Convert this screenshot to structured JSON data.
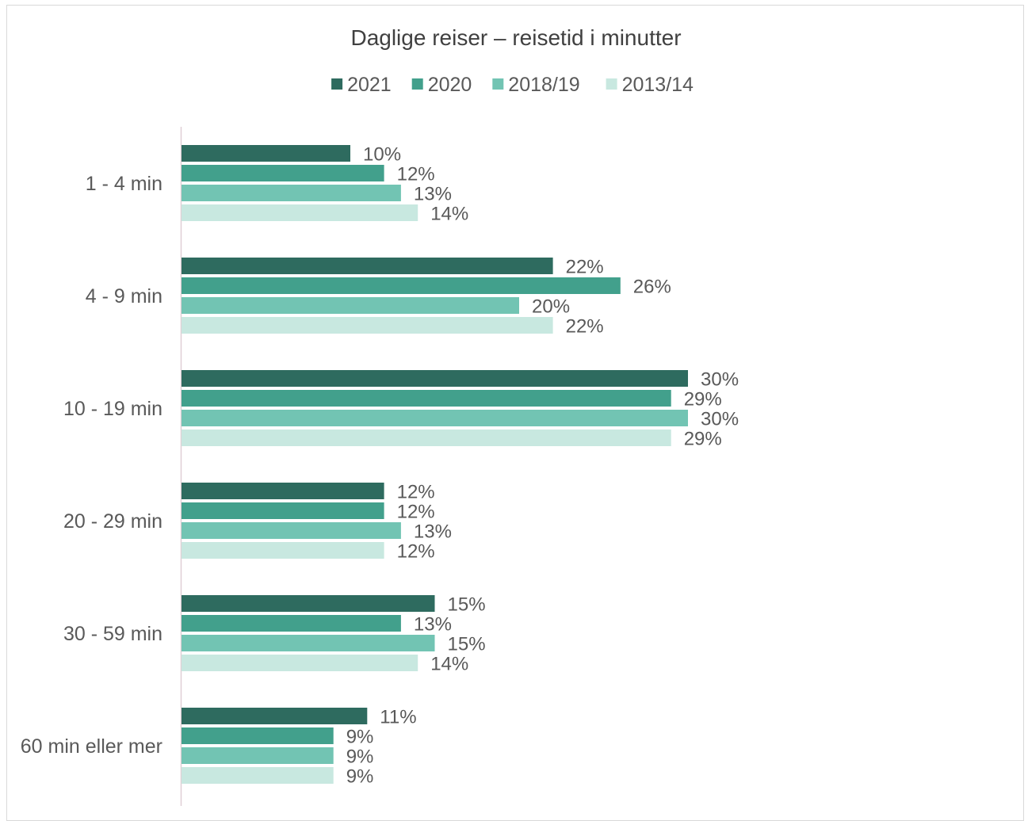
{
  "chart_data": {
    "type": "bar",
    "orientation": "horizontal",
    "title": "Daglige reiser – reisetid i minutter",
    "categories": [
      "1 - 4 min",
      "4 - 9 min",
      "10 - 19 min",
      "20 - 29 min",
      "30 - 59 min",
      "60 min eller mer"
    ],
    "series": [
      {
        "name": "2021",
        "color": "#2e6b5f",
        "values": [
          10,
          22,
          30,
          12,
          15,
          11
        ]
      },
      {
        "name": "2020",
        "color": "#42a08c",
        "values": [
          12,
          26,
          29,
          12,
          13,
          9
        ]
      },
      {
        "name": "2018/19",
        "color": "#72c4b3",
        "values": [
          13,
          20,
          30,
          13,
          15,
          9
        ]
      },
      {
        "name": "2013/14",
        "color": "#c8e8e0",
        "values": [
          14,
          22,
          29,
          12,
          14,
          9
        ]
      }
    ],
    "value_suffix": "%",
    "legend_position": "top",
    "grid": false,
    "xlim": [
      0,
      30
    ]
  }
}
